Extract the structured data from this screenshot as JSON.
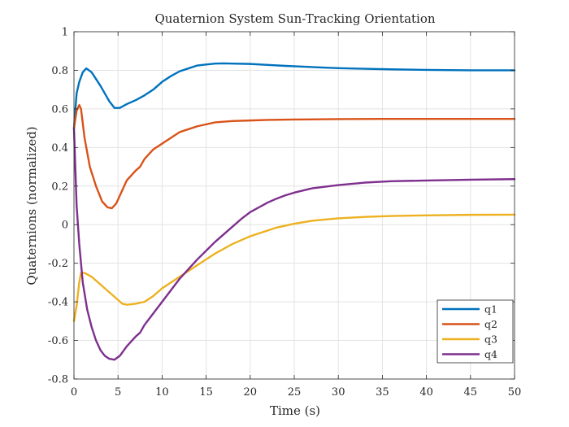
{
  "chart_data": {
    "type": "line",
    "title": "Quaternion System Sun-Tracking Orientation",
    "xlabel": "Time (s)",
    "ylabel": "Quaternions (normalized)",
    "xlim": [
      0,
      50
    ],
    "ylim": [
      -0.8,
      1
    ],
    "xticks": [
      0,
      5,
      10,
      15,
      20,
      25,
      30,
      35,
      40,
      45,
      50
    ],
    "yticks": [
      -0.8,
      -0.6,
      -0.4,
      -0.2,
      0,
      0.2,
      0.4,
      0.6,
      0.8,
      1
    ],
    "xtick_labels": [
      "0",
      "5",
      "10",
      "15",
      "20",
      "25",
      "30",
      "35",
      "40",
      "45",
      "50"
    ],
    "ytick_labels": [
      "-0.8",
      "-0.6",
      "-0.4",
      "-0.2",
      "0",
      "0.2",
      "0.4",
      "0.6",
      "0.8",
      "1"
    ],
    "grid": true,
    "legend_position": "bottom-right",
    "series": [
      {
        "name": "q1",
        "color": "#0072BD",
        "points": [
          [
            0,
            0.5
          ],
          [
            0.3,
            0.68
          ],
          [
            0.6,
            0.74
          ],
          [
            1,
            0.79
          ],
          [
            1.4,
            0.81
          ],
          [
            2,
            0.79
          ],
          [
            3,
            0.72
          ],
          [
            4,
            0.64
          ],
          [
            4.6,
            0.605
          ],
          [
            5.2,
            0.605
          ],
          [
            6,
            0.625
          ],
          [
            7,
            0.645
          ],
          [
            8,
            0.67
          ],
          [
            9,
            0.7
          ],
          [
            10,
            0.74
          ],
          [
            11,
            0.77
          ],
          [
            12,
            0.795
          ],
          [
            13,
            0.81
          ],
          [
            14,
            0.825
          ],
          [
            15,
            0.83
          ],
          [
            16,
            0.835
          ],
          [
            17,
            0.836
          ],
          [
            18,
            0.835
          ],
          [
            20,
            0.833
          ],
          [
            22,
            0.828
          ],
          [
            24,
            0.823
          ],
          [
            26,
            0.819
          ],
          [
            28,
            0.815
          ],
          [
            30,
            0.811
          ],
          [
            33,
            0.808
          ],
          [
            36,
            0.805
          ],
          [
            40,
            0.802
          ],
          [
            45,
            0.8
          ],
          [
            50,
            0.8
          ]
        ]
      },
      {
        "name": "q2",
        "color": "#D95319",
        "points": [
          [
            0,
            0.5
          ],
          [
            0.3,
            0.59
          ],
          [
            0.6,
            0.62
          ],
          [
            0.8,
            0.6
          ],
          [
            1.2,
            0.45
          ],
          [
            1.8,
            0.3
          ],
          [
            2.5,
            0.2
          ],
          [
            3.2,
            0.12
          ],
          [
            3.8,
            0.09
          ],
          [
            4.3,
            0.085
          ],
          [
            4.8,
            0.11
          ],
          [
            5.3,
            0.16
          ],
          [
            6,
            0.23
          ],
          [
            7,
            0.28
          ],
          [
            7.5,
            0.3
          ],
          [
            8,
            0.34
          ],
          [
            9,
            0.39
          ],
          [
            10,
            0.42
          ],
          [
            11,
            0.45
          ],
          [
            12,
            0.48
          ],
          [
            13,
            0.495
          ],
          [
            14,
            0.51
          ],
          [
            15,
            0.52
          ],
          [
            16,
            0.53
          ],
          [
            18,
            0.537
          ],
          [
            20,
            0.54
          ],
          [
            22,
            0.543
          ],
          [
            25,
            0.545
          ],
          [
            30,
            0.547
          ],
          [
            35,
            0.548
          ],
          [
            40,
            0.548
          ],
          [
            45,
            0.548
          ],
          [
            50,
            0.548
          ]
        ]
      },
      {
        "name": "q3",
        "color": "#EDB120",
        "points": [
          [
            0,
            -0.5
          ],
          [
            0.3,
            -0.42
          ],
          [
            0.6,
            -0.3
          ],
          [
            0.8,
            -0.25
          ],
          [
            1.2,
            -0.25
          ],
          [
            2,
            -0.27
          ],
          [
            3,
            -0.31
          ],
          [
            4,
            -0.35
          ],
          [
            5,
            -0.39
          ],
          [
            5.5,
            -0.41
          ],
          [
            6,
            -0.415
          ],
          [
            7,
            -0.41
          ],
          [
            8,
            -0.4
          ],
          [
            9,
            -0.37
          ],
          [
            10,
            -0.33
          ],
          [
            11,
            -0.3
          ],
          [
            12,
            -0.27
          ],
          [
            13,
            -0.24
          ],
          [
            14,
            -0.21
          ],
          [
            15,
            -0.18
          ],
          [
            16,
            -0.15
          ],
          [
            17,
            -0.125
          ],
          [
            18,
            -0.1
          ],
          [
            19,
            -0.08
          ],
          [
            20,
            -0.06
          ],
          [
            21,
            -0.045
          ],
          [
            22,
            -0.03
          ],
          [
            23,
            -0.015
          ],
          [
            24,
            -0.005
          ],
          [
            25,
            0.005
          ],
          [
            27,
            0.02
          ],
          [
            30,
            0.033
          ],
          [
            33,
            0.04
          ],
          [
            36,
            0.045
          ],
          [
            40,
            0.048
          ],
          [
            45,
            0.051
          ],
          [
            50,
            0.052
          ]
        ]
      },
      {
        "name": "q4",
        "color": "#7E2F8E",
        "points": [
          [
            0,
            0.5
          ],
          [
            0.3,
            0.1
          ],
          [
            0.6,
            -0.1
          ],
          [
            1,
            -0.3
          ],
          [
            1.5,
            -0.44
          ],
          [
            2,
            -0.53
          ],
          [
            2.5,
            -0.6
          ],
          [
            3,
            -0.65
          ],
          [
            3.5,
            -0.68
          ],
          [
            4,
            -0.695
          ],
          [
            4.6,
            -0.7
          ],
          [
            5.2,
            -0.68
          ],
          [
            6,
            -0.63
          ],
          [
            7,
            -0.58
          ],
          [
            7.5,
            -0.56
          ],
          [
            8,
            -0.52
          ],
          [
            9,
            -0.46
          ],
          [
            10,
            -0.4
          ],
          [
            11,
            -0.34
          ],
          [
            12,
            -0.28
          ],
          [
            13,
            -0.23
          ],
          [
            14,
            -0.18
          ],
          [
            15,
            -0.135
          ],
          [
            16,
            -0.09
          ],
          [
            17,
            -0.05
          ],
          [
            18,
            -0.01
          ],
          [
            19,
            0.03
          ],
          [
            20,
            0.065
          ],
          [
            21,
            0.09
          ],
          [
            22,
            0.115
          ],
          [
            23,
            0.135
          ],
          [
            24,
            0.152
          ],
          [
            25,
            0.166
          ],
          [
            27,
            0.188
          ],
          [
            30,
            0.205
          ],
          [
            33,
            0.218
          ],
          [
            36,
            0.225
          ],
          [
            40,
            0.229
          ],
          [
            45,
            0.233
          ],
          [
            50,
            0.236
          ]
        ]
      }
    ]
  }
}
